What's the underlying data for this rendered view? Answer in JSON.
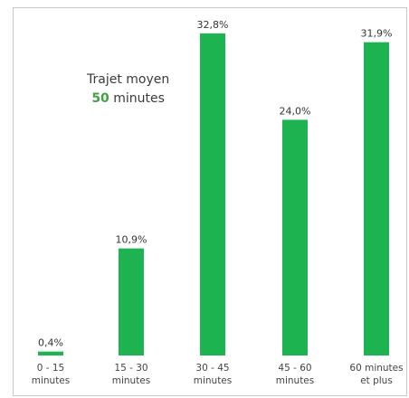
{
  "chart_data": {
    "type": "bar",
    "categories": [
      "0 - 15 minutes",
      "15 - 30 minutes",
      "30 - 45 minutes",
      "45 - 60 minutes",
      "60 minutes et plus"
    ],
    "values": [
      0.4,
      10.9,
      32.8,
      24.0,
      31.9
    ],
    "value_labels": [
      "0,4%",
      "10,9%",
      "32,8%",
      "24,0%",
      "31,9%"
    ],
    "color": "#1db350",
    "ylim": [
      0,
      35
    ],
    "annotation": {
      "title": "Trajet moyen",
      "value": "50",
      "unit": "minutes"
    }
  }
}
